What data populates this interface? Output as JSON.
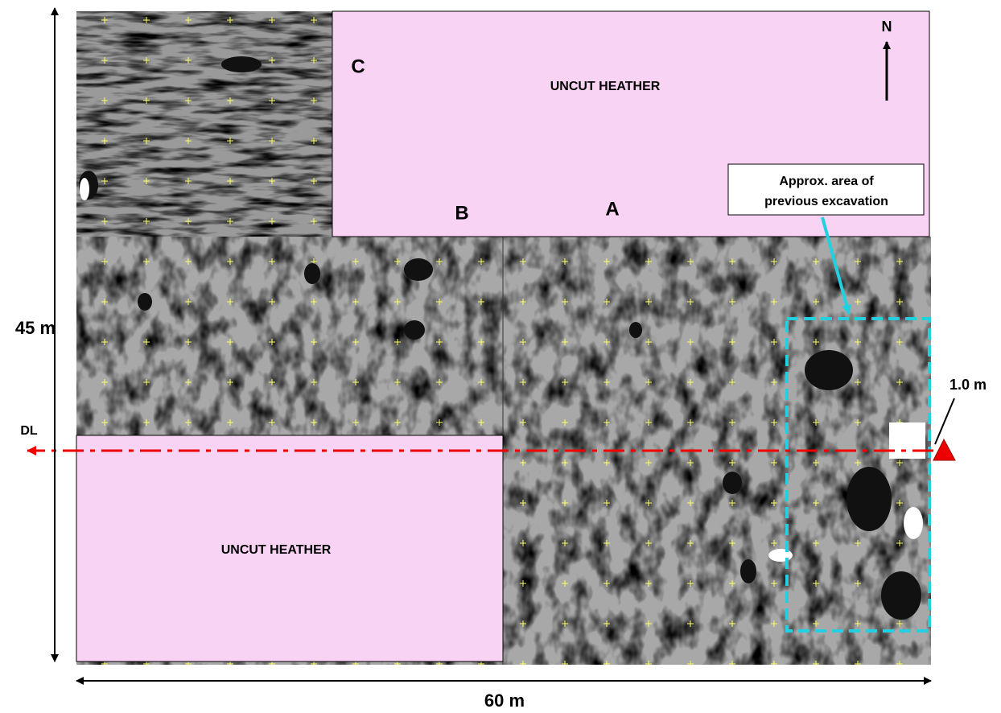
{
  "labels": {
    "area_c": "C",
    "area_b": "B",
    "area_a": "A",
    "north": "N",
    "uncut_top": "UNCUT HEATHER",
    "uncut_bottom": "UNCUT HEATHER",
    "excavation": [
      "Approx. area of",
      "previous excavation"
    ],
    "height": "45 m",
    "width": "60 m",
    "datum_line": "DL",
    "depth": "1.0 m"
  }
}
